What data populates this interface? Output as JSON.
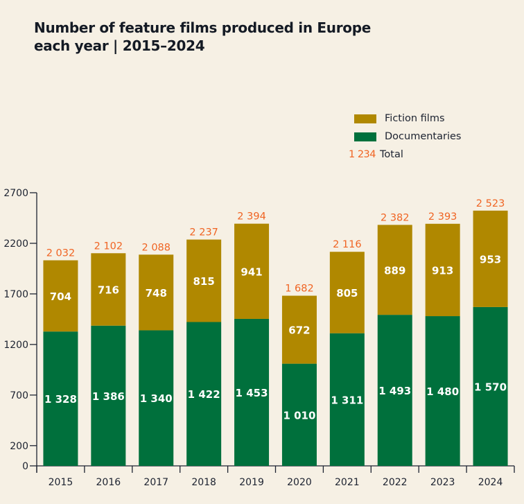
{
  "title_line1": "Number of feature films produced in Europe",
  "title_line2": "each year | 2015–2024",
  "legend": {
    "fiction": "Fiction films",
    "documentaries": "Documentaries",
    "total_sample": "1 234",
    "total": "Total"
  },
  "colors": {
    "fiction": "#b08800",
    "documentaries": "#00703c",
    "total": "#f06423",
    "background": "#f6f0e4",
    "axis": "#1c2230"
  },
  "chart_data": {
    "type": "bar",
    "stacked": true,
    "title": "Number of feature films produced in Europe each year | 2015–2024",
    "xlabel": "",
    "ylabel": "",
    "ylim": [
      0,
      2700
    ],
    "yticks": [
      0,
      200,
      700,
      1200,
      1700,
      2200,
      2700
    ],
    "categories": [
      "2015",
      "2016",
      "2017",
      "2018",
      "2019",
      "2020",
      "2021",
      "2022",
      "2023",
      "2024"
    ],
    "series": [
      {
        "name": "Documentaries",
        "values": [
          1328,
          1386,
          1340,
          1422,
          1453,
          1010,
          1311,
          1493,
          1480,
          1570
        ]
      },
      {
        "name": "Fiction films",
        "values": [
          704,
          716,
          748,
          815,
          941,
          672,
          805,
          889,
          913,
          953
        ]
      }
    ],
    "totals": [
      2032,
      2102,
      2088,
      2237,
      2394,
      1682,
      2116,
      2382,
      2393,
      2523
    ],
    "total_labels": [
      "2 032",
      "2 102",
      "2 088",
      "2 237",
      "2 394",
      "1 682",
      "2 116",
      "2 382",
      "2 393",
      "2 523"
    ],
    "documentary_labels": [
      "1 328",
      "1 386",
      "1 340",
      "1 422",
      "1 453",
      "1 010",
      "1 311",
      "1 493",
      "1 480",
      "1 570"
    ],
    "fiction_labels": [
      "704",
      "716",
      "748",
      "815",
      "941",
      "672",
      "805",
      "889",
      "913",
      "953"
    ],
    "legend_position": "top-right",
    "grid": false
  }
}
